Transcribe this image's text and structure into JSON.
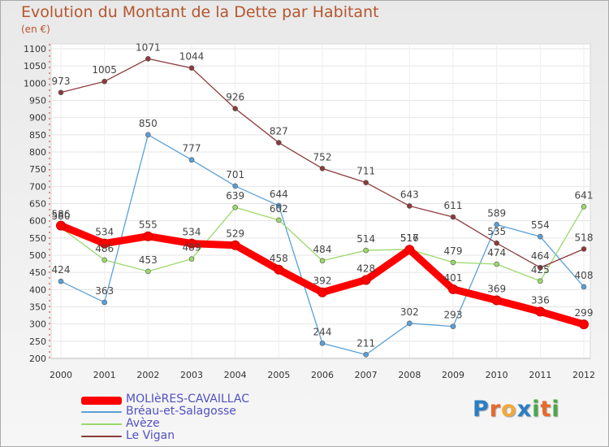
{
  "title": "Evolution du Montant de la Dette par Habitant",
  "subtitle": "(en €)",
  "logo": {
    "text": "Proxiti",
    "letters": [
      {
        "ch": "P",
        "color": "#2a7fc4"
      },
      {
        "ch": "r",
        "color": "#e8692a"
      },
      {
        "ch": "o",
        "color": "#f2a93b"
      },
      {
        "ch": "x",
        "color": "#2a7fc4"
      },
      {
        "ch": "i",
        "color": "#4aa84a"
      },
      {
        "ch": "t",
        "color": "#e8692a"
      },
      {
        "ch": "i",
        "color": "#4aa84a"
      }
    ]
  },
  "chart_data": {
    "type": "line",
    "categories": [
      "2000",
      "2001",
      "2002",
      "2003",
      "2004",
      "2005",
      "2006",
      "2007",
      "2008",
      "2009",
      "2010",
      "2011",
      "2012"
    ],
    "ylim": [
      200,
      1100
    ],
    "yticks": [
      200,
      250,
      300,
      350,
      400,
      450,
      500,
      550,
      600,
      650,
      700,
      750,
      800,
      850,
      900,
      950,
      1000,
      1050,
      1100
    ],
    "grid": true,
    "legend_position": "bottom-left",
    "series": [
      {
        "name": "MOLIèRES-CAVAILLAC",
        "color": "#ff0000",
        "emphasis": true,
        "values": [
          586,
          534,
          555,
          534,
          529,
          458,
          392,
          428,
          516,
          401,
          369,
          336,
          299
        ],
        "labels": [
          "586",
          "534",
          "555",
          "534",
          "529",
          "458",
          "392",
          "428",
          "516",
          "401",
          "369",
          "336",
          "299"
        ]
      },
      {
        "name": "Bréau-et-Salagosse",
        "color": "#5aa0d8",
        "values": [
          424,
          363,
          850,
          777,
          701,
          644,
          244,
          211,
          302,
          293,
          589,
          554,
          408
        ],
        "labels": [
          "424",
          "363",
          "850",
          "777",
          "701",
          "644",
          "244",
          "211",
          "302",
          "293",
          "589",
          "554",
          "408"
        ]
      },
      {
        "name": "Avèze",
        "color": "#9cd86a",
        "values": [
          580,
          486,
          453,
          489,
          639,
          602,
          484,
          514,
          517,
          479,
          474,
          425,
          641
        ],
        "labels": [
          "580",
          "486",
          "453",
          "489",
          "639",
          "602",
          "484",
          "514",
          "517",
          "479",
          "474",
          "425",
          "641"
        ]
      },
      {
        "name": "Le Vigan",
        "color": "#8c3a3a",
        "values": [
          973,
          1005,
          1071,
          1044,
          926,
          827,
          752,
          711,
          643,
          611,
          535,
          464,
          518
        ],
        "labels": [
          "973",
          "1005",
          "1071",
          "1044",
          "926",
          "827",
          "752",
          "711",
          "643",
          "611",
          "535",
          "464",
          "518"
        ]
      }
    ]
  }
}
